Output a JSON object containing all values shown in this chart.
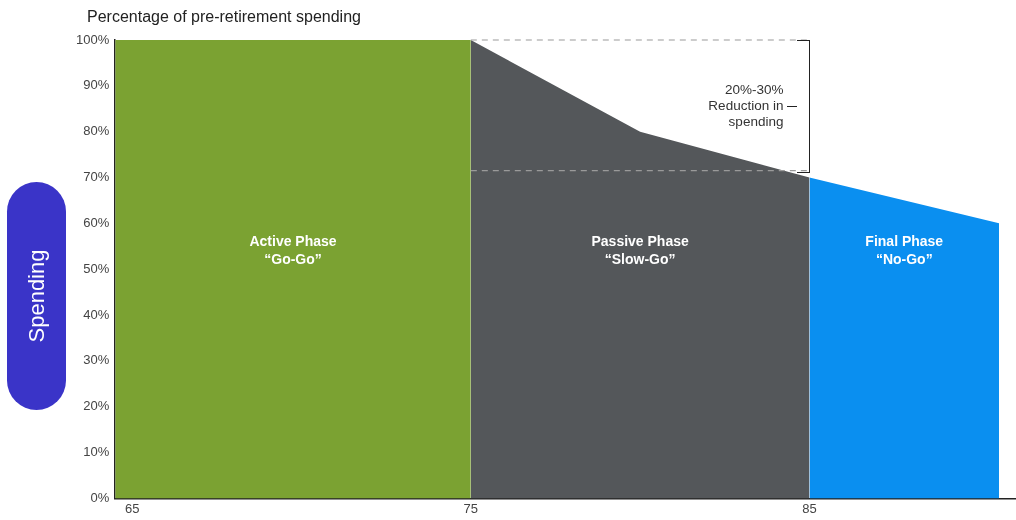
{
  "chart_data": {
    "type": "area",
    "title": "Percentage of pre-retirement spending",
    "ylabel": "Spending",
    "xlim": [
      64.5,
      91.1
    ],
    "xticks": [
      65,
      75,
      85
    ],
    "ylim": [
      0,
      100
    ],
    "yticks": [
      {
        "value": 0,
        "label": "0%"
      },
      {
        "value": 10,
        "label": "10%"
      },
      {
        "value": 20,
        "label": "20%"
      },
      {
        "value": 30,
        "label": "30%"
      },
      {
        "value": 40,
        "label": "40%"
      },
      {
        "value": 50,
        "label": "50%"
      },
      {
        "value": 60,
        "label": "60%"
      },
      {
        "value": 70,
        "label": "70%"
      },
      {
        "value": 80,
        "label": "80%"
      },
      {
        "value": 90,
        "label": "90%"
      },
      {
        "value": 100,
        "label": "100%"
      }
    ],
    "series": [
      {
        "name": "Active Phase\n“Go-Go”",
        "color": "#7ba232",
        "x": [
          64.5,
          75
        ],
        "values": [
          100,
          100
        ]
      },
      {
        "name": "Passive Phase\n“Slow-Go”",
        "color": "#54575a",
        "x": [
          75,
          80,
          85
        ],
        "values": [
          100,
          80,
          70
        ]
      },
      {
        "name": "Final Phase\n“No-Go”",
        "color": "#0a8ff0",
        "x": [
          85,
          90.6
        ],
        "values": [
          70,
          60
        ]
      }
    ],
    "ref_lines": [
      {
        "axis": "y",
        "value": 100,
        "color": "#9a9a9a",
        "line_style": "dashed"
      },
      {
        "axis": "y",
        "value": 71.5,
        "color": "#9a9a9a",
        "line_style": "dashed"
      }
    ],
    "annotations": [
      "20%-30%\nReduction in\nspending"
    ],
    "grid": false,
    "legend": false
  }
}
